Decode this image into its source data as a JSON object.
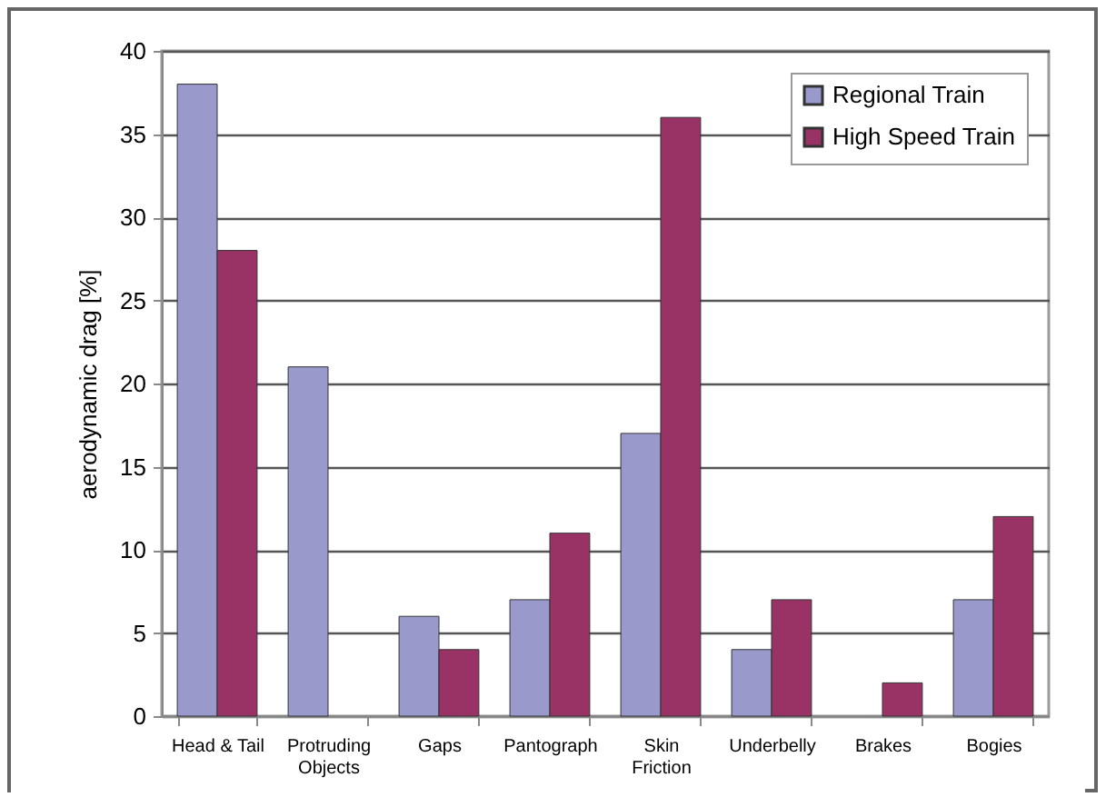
{
  "chart_data": {
    "type": "bar",
    "ylabel": "aerodynamic drag [%]",
    "categories": [
      "Head & Tail",
      "Protruding Objects",
      "Gaps",
      "Pantograph",
      "Skin Friction",
      "Underbelly",
      "Brakes",
      "Bogies"
    ],
    "series": [
      {
        "name": "Regional Train",
        "color": "#9999cc",
        "values": [
          38,
          21,
          6,
          7,
          17,
          4,
          null,
          7
        ]
      },
      {
        "name": "High Speed Train",
        "color": "#993366",
        "values": [
          28,
          null,
          4,
          11,
          36,
          7,
          2,
          12
        ]
      }
    ],
    "ylim": [
      0,
      40
    ],
    "yticks": [
      0,
      5,
      10,
      15,
      20,
      25,
      30,
      35,
      40
    ],
    "grid": "y",
    "legend": "top right"
  }
}
